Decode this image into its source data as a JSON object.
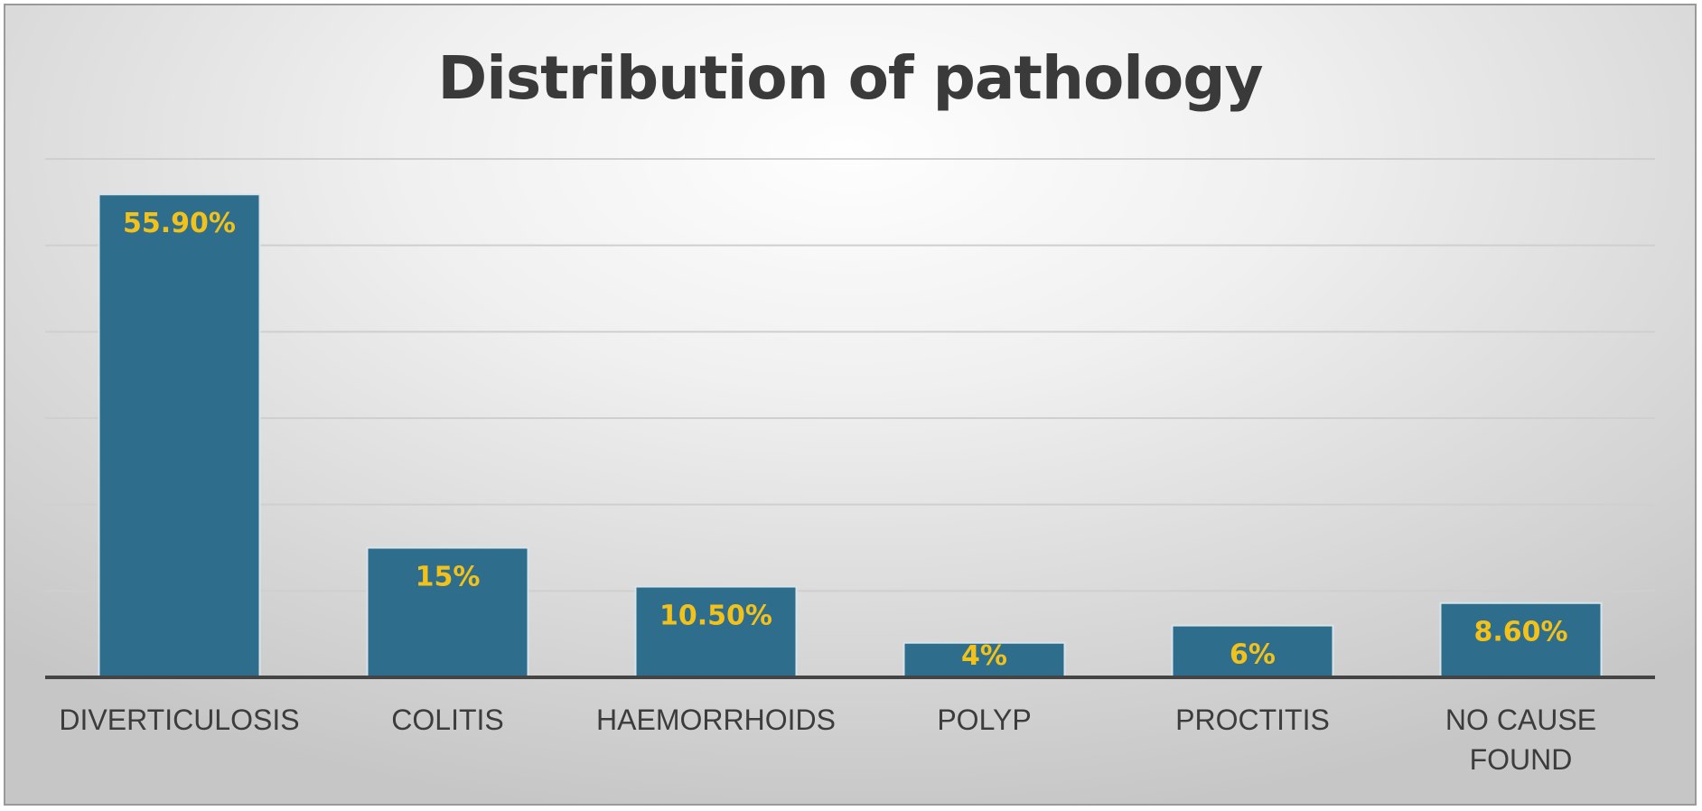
{
  "chart_data": {
    "type": "bar",
    "title": "Distribution of pathology",
    "categories": [
      [
        "DIVERTICULOSIS"
      ],
      [
        "COLITIS"
      ],
      [
        "HAEMORRHOIDS"
      ],
      [
        "POLYP"
      ],
      [
        "PROCTITIS"
      ],
      [
        "NO CAUSE",
        "FOUND"
      ]
    ],
    "values": [
      55.9,
      15,
      10.5,
      4,
      6,
      8.6
    ],
    "data_labels": [
      "55.90%",
      "15%",
      "10.50%",
      "4%",
      "6%",
      "8.60%"
    ],
    "ylim": [
      0,
      60
    ],
    "y_gridlines": [
      10,
      20,
      30,
      40,
      50,
      60
    ],
    "grid": true,
    "legend": "none",
    "colors": {
      "bar": "#2f6d8c",
      "bar_border": "#d9e4ea",
      "data_label": "#f3c21a",
      "axis": "#444444",
      "grid": "#cfcfcf",
      "text": "#3c3c3c"
    }
  }
}
